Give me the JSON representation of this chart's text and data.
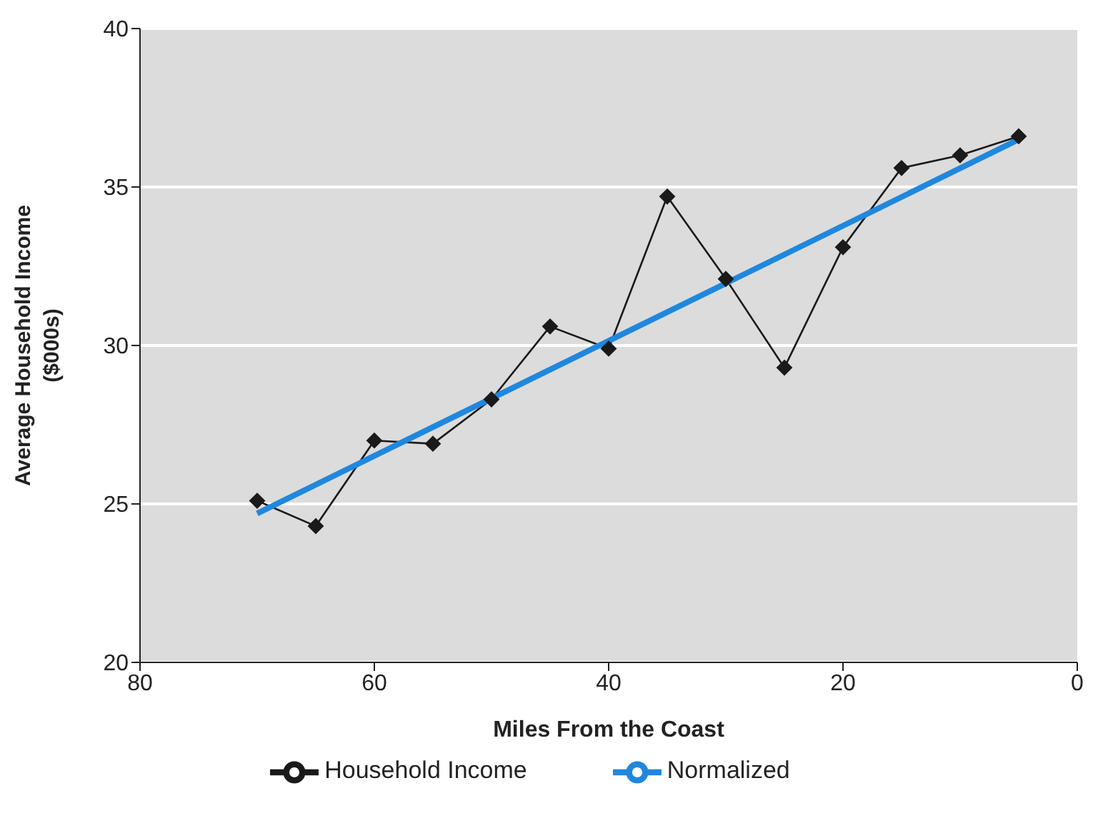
{
  "chart_data": {
    "type": "line",
    "xlabel": "Miles From the Coast",
    "ylabel": "Average Household Income\n($000s)",
    "xlim": [
      80,
      0
    ],
    "xticks": [
      80,
      60,
      40,
      20,
      0
    ],
    "ylim": [
      20,
      40
    ],
    "yticks": [
      20,
      25,
      30,
      35,
      40
    ],
    "grid": "y",
    "legend": "bottom",
    "series": [
      {
        "name": "Household Income",
        "color": "#1a1a1a",
        "marker": "diamond",
        "x": [
          70,
          65,
          60,
          55,
          50,
          45,
          40,
          35,
          30,
          25,
          20,
          15,
          10,
          5
        ],
        "values": [
          25.1,
          24.3,
          27.0,
          26.9,
          28.3,
          30.6,
          29.9,
          34.7,
          32.1,
          29.3,
          33.1,
          35.6,
          36.0,
          36.6
        ]
      },
      {
        "name": "Normalized",
        "color": "#1f88de",
        "marker": "none",
        "x": [
          70,
          5
        ],
        "values": [
          24.7,
          36.5
        ]
      }
    ]
  }
}
